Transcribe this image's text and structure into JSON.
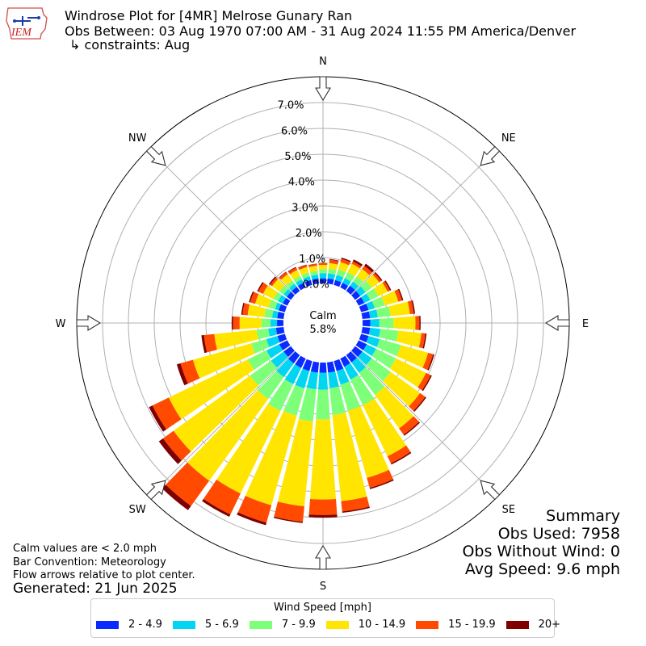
{
  "header": {
    "title": "Windrose Plot for [4MR] Melrose Gunary Ran",
    "period": "Obs Between: 03 Aug 1970 07:00 AM - 31 Aug 2024 11:55 PM America/Denver",
    "constraint": "↳ constraints: Aug",
    "logo_text": "IEM"
  },
  "summary": {
    "title": "Summary",
    "obs_used": "Obs Used: 7958",
    "obs_without_wind": "Obs Without Wind: 0",
    "avg_speed": "Avg Speed: 9.6 mph"
  },
  "notes": {
    "calm_def": "Calm values are < 2.0 mph",
    "bar_convention": "Bar Convention: Meteorology",
    "flow_arrows": "Flow arrows relative to plot center.",
    "generated": "Generated: 21 Jun 2025"
  },
  "chart_data": {
    "type": "windrose",
    "calm_label": "Calm",
    "calm_value": "5.8%",
    "radial_ticks": [
      "0.0%",
      "1.0%",
      "2.0%",
      "3.0%",
      "4.0%",
      "5.0%",
      "6.0%",
      "7.0%"
    ],
    "radial_max": 8.0,
    "calm_radius_pct": 1.45,
    "compass_labels": [
      "N",
      "NE",
      "E",
      "SE",
      "S",
      "SW",
      "W",
      "NW"
    ],
    "legend_title": "Wind Speed [mph]",
    "bins": [
      {
        "label": "2 - 4.9",
        "color": "#0a2bff"
      },
      {
        "label": "5 - 6.9",
        "color": "#00d5f2"
      },
      {
        "label": "7 - 9.9",
        "color": "#7dff7a"
      },
      {
        "label": "10 - 14.9",
        "color": "#ffe500"
      },
      {
        "label": "15 - 19.9",
        "color": "#ff4a00"
      },
      {
        "label": "20+",
        "color": "#7f0000"
      }
    ],
    "directions_deg": [
      0,
      10,
      20,
      30,
      40,
      50,
      60,
      70,
      80,
      90,
      100,
      110,
      120,
      130,
      140,
      150,
      160,
      170,
      180,
      190,
      200,
      210,
      220,
      230,
      240,
      250,
      260,
      270,
      280,
      290,
      300,
      310,
      320,
      330,
      340,
      350
    ],
    "cumulative_pct": [
      [
        0.2,
        0.4,
        0.55,
        0.72,
        0.79,
        0.8
      ],
      [
        0.2,
        0.4,
        0.58,
        0.8,
        0.93,
        0.96
      ],
      [
        0.2,
        0.4,
        0.62,
        0.92,
        1.05,
        1.1
      ],
      [
        0.2,
        0.4,
        0.65,
        1.02,
        1.12,
        1.2
      ],
      [
        0.25,
        0.45,
        0.7,
        1.05,
        1.2,
        1.3
      ],
      [
        0.25,
        0.5,
        0.8,
        1.15,
        1.25,
        1.3
      ],
      [
        0.25,
        0.5,
        0.85,
        1.25,
        1.35,
        1.4
      ],
      [
        0.3,
        0.55,
        0.95,
        1.5,
        1.65,
        1.7
      ],
      [
        0.3,
        0.6,
        1.1,
        1.85,
        2.0,
        2.05
      ],
      [
        0.3,
        0.65,
        1.2,
        2.05,
        2.2,
        2.25
      ],
      [
        0.3,
        0.7,
        1.4,
        2.3,
        2.45,
        2.5
      ],
      [
        0.3,
        0.75,
        1.6,
        2.7,
        2.9,
        2.95
      ],
      [
        0.35,
        0.75,
        1.6,
        2.9,
        3.1,
        3.15
      ],
      [
        0.35,
        0.8,
        1.7,
        3.1,
        3.35,
        3.4
      ],
      [
        0.35,
        0.85,
        1.9,
        3.5,
        3.8,
        3.85
      ],
      [
        0.35,
        0.9,
        2.0,
        4.2,
        4.5,
        4.55
      ],
      [
        0.4,
        0.95,
        2.0,
        4.7,
        5.1,
        5.15
      ],
      [
        0.4,
        1.0,
        2.05,
        5.4,
        5.8,
        5.85
      ],
      [
        0.4,
        1.05,
        2.2,
        5.3,
        5.9,
        6.0
      ],
      [
        0.4,
        1.05,
        2.3,
        5.6,
        6.2,
        6.25
      ],
      [
        0.4,
        1.1,
        2.2,
        5.8,
        6.5,
        6.6
      ],
      [
        0.4,
        1.1,
        2.25,
        5.8,
        6.7,
        6.8
      ],
      [
        0.4,
        1.05,
        2.1,
        6.0,
        7.2,
        7.4
      ],
      [
        0.35,
        0.95,
        1.95,
        5.6,
        6.1,
        6.3
      ],
      [
        0.35,
        0.9,
        1.7,
        5.1,
        5.8,
        5.95
      ],
      [
        0.3,
        0.75,
        1.35,
        3.7,
        4.2,
        4.35
      ],
      [
        0.3,
        0.6,
        1.05,
        2.7,
        3.1,
        3.2
      ],
      [
        0.25,
        0.5,
        0.85,
        1.7,
        1.95,
        2.0
      ],
      [
        0.25,
        0.45,
        0.75,
        1.4,
        1.6,
        1.65
      ],
      [
        0.25,
        0.4,
        0.65,
        1.2,
        1.4,
        1.45
      ],
      [
        0.2,
        0.4,
        0.6,
        1.05,
        1.25,
        1.3
      ],
      [
        0.2,
        0.35,
        0.55,
        0.9,
        1.0,
        1.05
      ],
      [
        0.2,
        0.35,
        0.5,
        0.8,
        0.9,
        0.92
      ],
      [
        0.2,
        0.35,
        0.5,
        0.75,
        0.85,
        0.88
      ],
      [
        0.2,
        0.35,
        0.5,
        0.72,
        0.8,
        0.82
      ],
      [
        0.2,
        0.35,
        0.5,
        0.7,
        0.77,
        0.78
      ]
    ]
  }
}
